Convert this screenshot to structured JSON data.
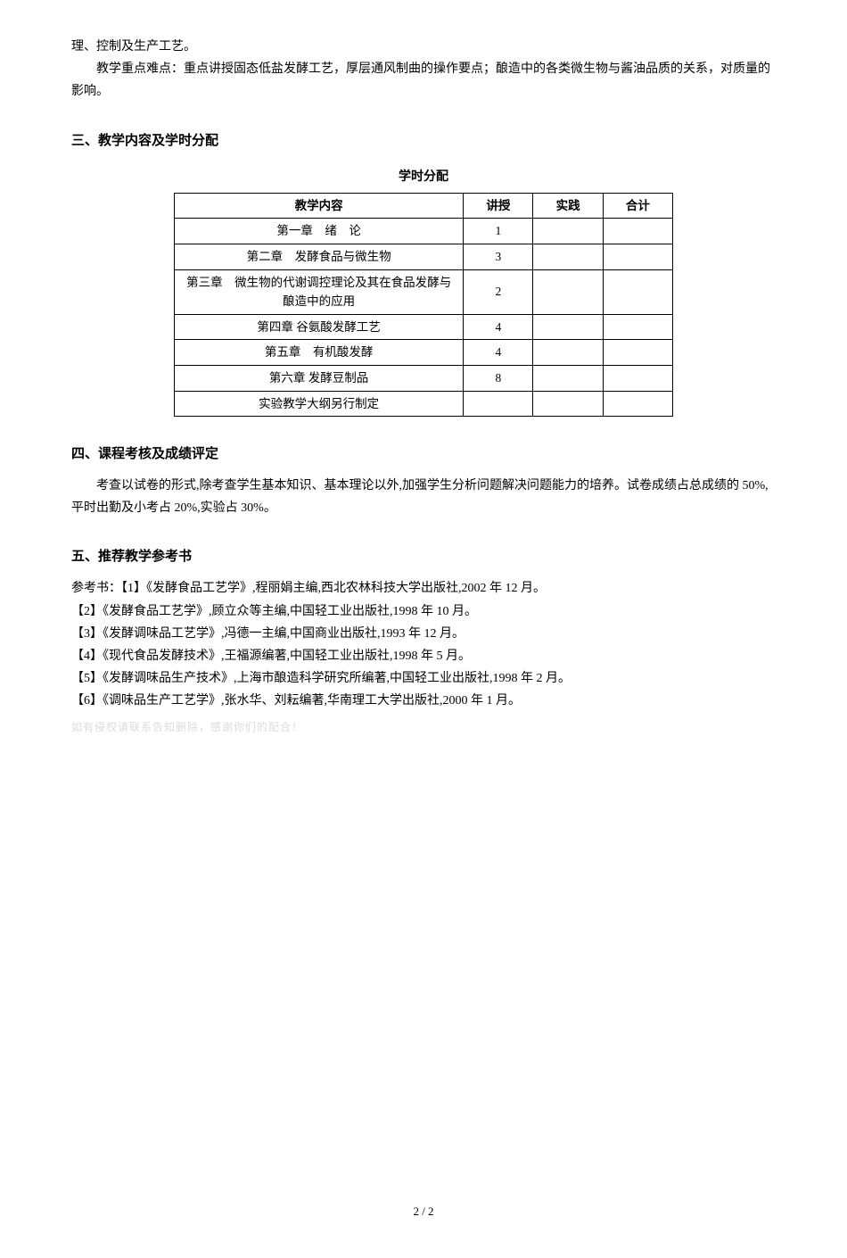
{
  "intro": {
    "line1": "理、控制及生产工艺。",
    "line2": "教学重点难点：重点讲授固态低盐发酵工艺，厚层通风制曲的操作要点；酿造中的各类微生物与酱油品质的关系，对质量的影响。"
  },
  "section3": {
    "heading": "三、教学内容及学时分配",
    "table_caption": "学时分配",
    "headers": {
      "c1": "教学内容",
      "c2": "讲授",
      "c3": "实践",
      "c4": "合计"
    },
    "rows": [
      {
        "c1": "第一章　绪　论",
        "c2": "1",
        "c3": "",
        "c4": ""
      },
      {
        "c1": "第二章　发酵食品与微生物",
        "c2": "3",
        "c3": "",
        "c4": ""
      },
      {
        "c1": "第三章　微生物的代谢调控理论及其在食品发酵与酿造中的应用",
        "c2": "2",
        "c3": "",
        "c4": ""
      },
      {
        "c1": "第四章 谷氨酸发酵工艺",
        "c2": "4",
        "c3": "",
        "c4": ""
      },
      {
        "c1": "第五章　有机酸发酵",
        "c2": "4",
        "c3": "",
        "c4": ""
      },
      {
        "c1": "第六章 发酵豆制品",
        "c2": "8",
        "c3": "",
        "c4": ""
      },
      {
        "c1": "实验教学大纲另行制定",
        "c2": "",
        "c3": "",
        "c4": ""
      }
    ]
  },
  "section4": {
    "heading": "四、课程考核及成绩评定",
    "body": "考查以试卷的形式,除考查学生基本知识、基本理论以外,加强学生分析问题解决问题能力的培养。试卷成绩占总成绩的 50%,平时出勤及小考占 20%,实验占 30%。"
  },
  "section5": {
    "heading": "五、推荐教学参考书",
    "label": "参考书：",
    "refs": [
      "【1】《发酵食品工艺学》,程丽娟主编,西北农林科技大学出版社,2002 年 12 月。",
      "【2】《发酵食品工艺学》,顾立众等主编,中国轻工业出版社,1998 年 10 月。",
      "【3】《发酵调味品工艺学》,冯德一主编,中国商业出版社,1993 年 12 月。",
      "【4】《现代食品发酵技术》,王福源编著,中国轻工业出版社,1998 年 5 月。",
      "【5】《发酵调味品生产技术》,上海市酿造科学研究所编著,中国轻工业出版社,1998 年 2 月。",
      "【6】《调味品生产工艺学》,张水华、刘耘编著,华南理工大学出版社,2000 年 1 月。"
    ]
  },
  "footer": {
    "page": "2 / 2"
  },
  "watermark": "如有侵权请联系告知删除，感谢你们的配合！",
  "colors": {
    "text": "#000000",
    "bg": "#ffffff",
    "watermark": "#d9dce0",
    "border": "#000000"
  }
}
